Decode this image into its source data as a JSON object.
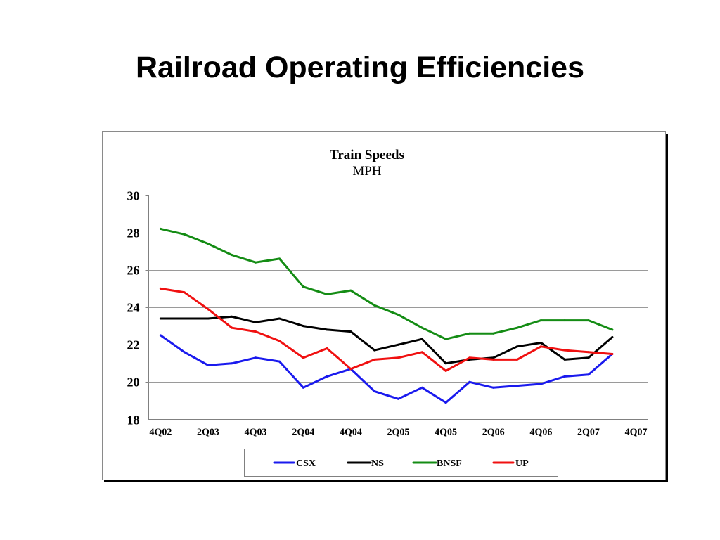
{
  "slide": {
    "title": "Railroad Operating Efficiencies",
    "background": "#ffffff"
  },
  "chart_data": {
    "type": "line",
    "title": "Train Speeds",
    "subtitle": "MPH",
    "ylim": [
      18,
      30
    ],
    "yticks": [
      18,
      20,
      22,
      24,
      26,
      28,
      30
    ],
    "grid": true,
    "legend": "bottom",
    "categories": [
      "4Q02",
      "",
      "2Q03",
      "",
      "4Q03",
      "",
      "2Q04",
      "",
      "4Q04",
      "",
      "2Q05",
      "",
      "4Q05",
      "",
      "2Q06",
      "",
      "4Q06",
      "",
      "2Q07",
      "",
      "4Q07"
    ],
    "series": [
      {
        "name": "CSX",
        "color": "#1a1aee",
        "values": [
          22.5,
          21.6,
          20.9,
          21.0,
          21.3,
          21.1,
          19.7,
          20.3,
          20.7,
          19.5,
          19.1,
          19.7,
          18.9,
          20.0,
          19.7,
          19.8,
          19.9,
          20.3,
          20.4,
          21.5,
          null
        ]
      },
      {
        "name": "NS",
        "color": "#000000",
        "values": [
          23.4,
          23.4,
          23.4,
          23.5,
          23.2,
          23.4,
          23.0,
          22.8,
          22.7,
          21.7,
          22.0,
          22.3,
          21.0,
          21.2,
          21.3,
          21.9,
          22.1,
          21.2,
          21.3,
          22.4,
          null
        ]
      },
      {
        "name": "BNSF",
        "color": "#148c14",
        "values": [
          28.2,
          27.9,
          27.4,
          26.8,
          26.4,
          26.6,
          25.1,
          24.7,
          24.9,
          24.1,
          23.6,
          22.9,
          22.3,
          22.6,
          22.6,
          22.9,
          23.3,
          23.3,
          23.3,
          22.8,
          null
        ]
      },
      {
        "name": "UP",
        "color": "#f01010",
        "values": [
          25.0,
          24.8,
          23.9,
          22.9,
          22.7,
          22.2,
          21.3,
          21.8,
          20.7,
          21.2,
          21.3,
          21.6,
          20.6,
          21.3,
          21.2,
          21.2,
          21.9,
          21.7,
          21.6,
          21.5,
          null
        ]
      }
    ]
  }
}
